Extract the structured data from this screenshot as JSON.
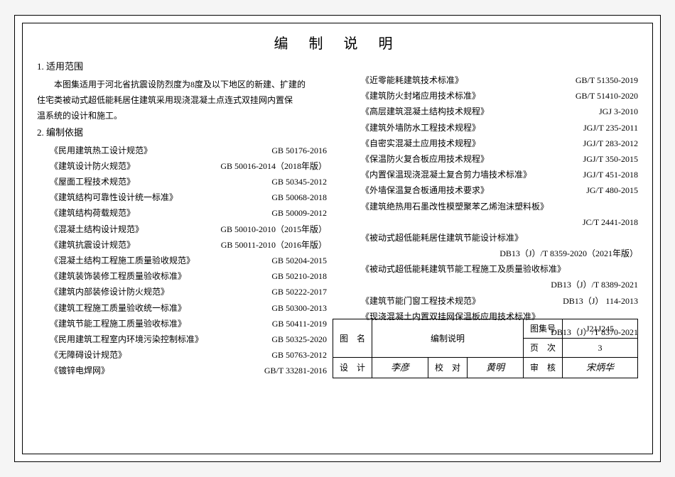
{
  "title": "编 制 说 明",
  "sec1": "1. 适用范围",
  "para1a": "本图集适用于河北省抗震设防烈度为8度及以下地区的新建、扩建的",
  "para1b": "住宅类被动式超低能耗居住建筑采用现浇混凝土点连式双挂网内置保",
  "para1c": "温系统的设计和施工。",
  "sec2": "2. 编制依据",
  "left": [
    {
      "n": "《民用建筑热工设计规范》",
      "c": "GB 50176-2016"
    },
    {
      "n": "《建筑设计防火规范》",
      "c": "GB 50016-2014（2018年版）"
    },
    {
      "n": "《屋面工程技术规范》",
      "c": "GB 50345-2012"
    },
    {
      "n": "《建筑结构可靠性设计统一标准》",
      "c": "GB 50068-2018"
    },
    {
      "n": "《建筑结构荷载规范》",
      "c": "GB 50009-2012"
    },
    {
      "n": "《混凝土结构设计规范》",
      "c": "GB 50010-2010（2015年版）"
    },
    {
      "n": "《建筑抗震设计规范》",
      "c": "GB 50011-2010（2016年版）"
    },
    {
      "n": "《混凝土结构工程施工质量验收规范》",
      "c": "GB 50204-2015"
    },
    {
      "n": "《建筑装饰装修工程质量验收标准》",
      "c": "GB 50210-2018"
    },
    {
      "n": "《建筑内部装修设计防火规范》",
      "c": "GB 50222-2017"
    },
    {
      "n": "《建筑工程施工质量验收统一标准》",
      "c": "GB 50300-2013"
    },
    {
      "n": "《建筑节能工程施工质量验收标准》",
      "c": "GB 50411-2019"
    },
    {
      "n": "《民用建筑工程室内环境污染控制标准》",
      "c": "GB 50325-2020"
    },
    {
      "n": "《无障碍设计规范》",
      "c": "GB 50763-2012"
    },
    {
      "n": "《镀锌电焊网》",
      "c": "GB/T 33281-2016"
    }
  ],
  "right": [
    {
      "n": "《近零能耗建筑技术标准》",
      "c": "GB/T 51350-2019"
    },
    {
      "n": "《建筑防火封堵应用技术标准》",
      "c": "GB/T 51410-2020"
    },
    {
      "n": "《高层建筑混凝土结构技术规程》",
      "c": "JGJ 3-2010"
    },
    {
      "n": "《建筑外墙防水工程技术规程》",
      "c": "JGJ/T 235-2011"
    },
    {
      "n": "《自密实混凝土应用技术规程》",
      "c": "JGJ/T 283-2012"
    },
    {
      "n": "《保温防火复合板应用技术规程》",
      "c": "JGJ/T 350-2015"
    },
    {
      "n": "《内置保温现浇混凝土复合剪力墙技术标准》",
      "c": "JGJ/T 451-2018"
    },
    {
      "n": "《外墙保温复合板通用技术要求》",
      "c": "JG/T 480-2015"
    }
  ],
  "rline1": "《建筑绝热用石墨改性模塑聚苯乙烯泡沫塑料板》",
  "rcode1": "JC/T 2441-2018",
  "rline2": "《被动式超低能耗居住建筑节能设计标准》",
  "rcode2": "DB13（J）/T 8359-2020（2021年版）",
  "rline3": "《被动式超低能耗建筑节能工程施工及质量验收标准》",
  "rcode3": "DB13（J）/T 8389-2021",
  "rline4n": "《建筑节能门窗工程技术规范》",
  "rline4c": "DB13（J） 114-2013",
  "rline5": "《现浇混凝土内置双挂网保温板应用技术标准》",
  "rcode5": "DB13（J）/T 8370-2021",
  "ft": {
    "tuming_lbl": "图　名",
    "tuming_val": "编制说明",
    "tujihao_lbl": "图集号",
    "tujihao_val": "J21J245",
    "yeci_lbl": "页　次",
    "yeci_val": "3",
    "sheji_lbl": "设　计",
    "sheji_val": "李彦",
    "jiaodui_lbl": "校　对",
    "jiaodui_val": "黄明",
    "shenhe_lbl": "审　核",
    "shenhe_val": "宋炳华"
  }
}
